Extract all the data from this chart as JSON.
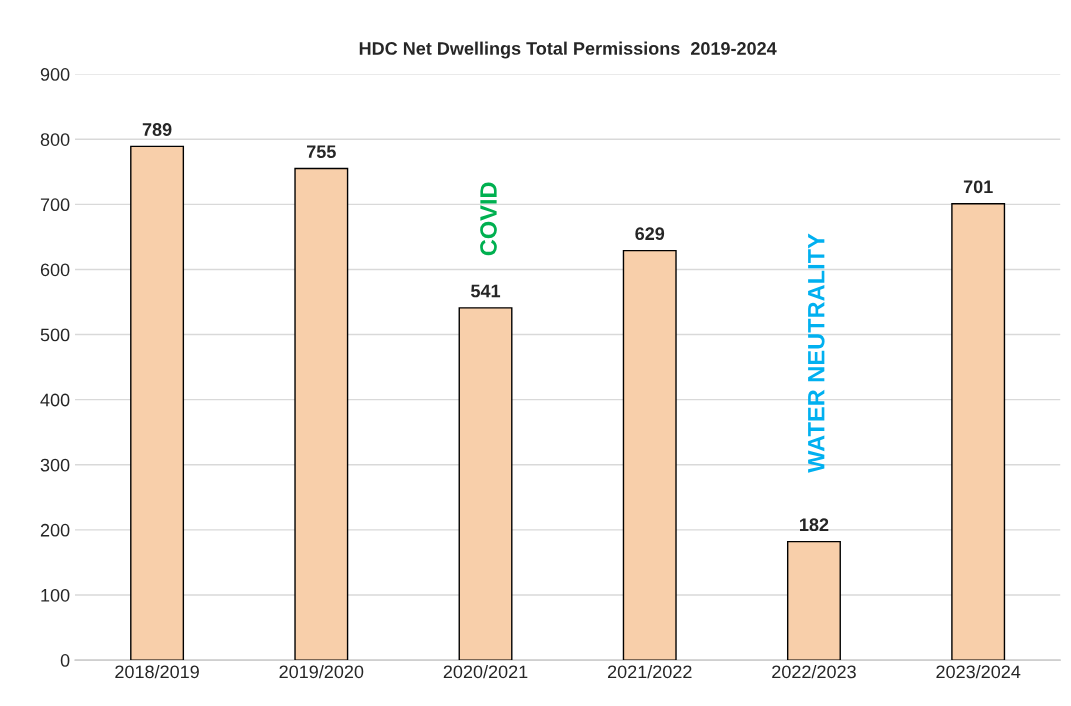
{
  "chart_data": {
    "type": "bar",
    "title": "HDC Net Dwellings Total Permissions  2019-2024",
    "categories": [
      "2018/2019",
      "2019/2020",
      "2020/2021",
      "2021/2022",
      "2022/2023",
      "2023/2024"
    ],
    "values": [
      789,
      755,
      541,
      629,
      182,
      701
    ],
    "color": "#f8cfaa",
    "ylim": [
      0,
      900
    ],
    "yticks": [
      0,
      100,
      200,
      300,
      400,
      500,
      600,
      700,
      800,
      900
    ],
    "grid": "y",
    "data_labels": true,
    "annotations": [
      "COVID",
      "WATER NEUTRALITY"
    ]
  }
}
